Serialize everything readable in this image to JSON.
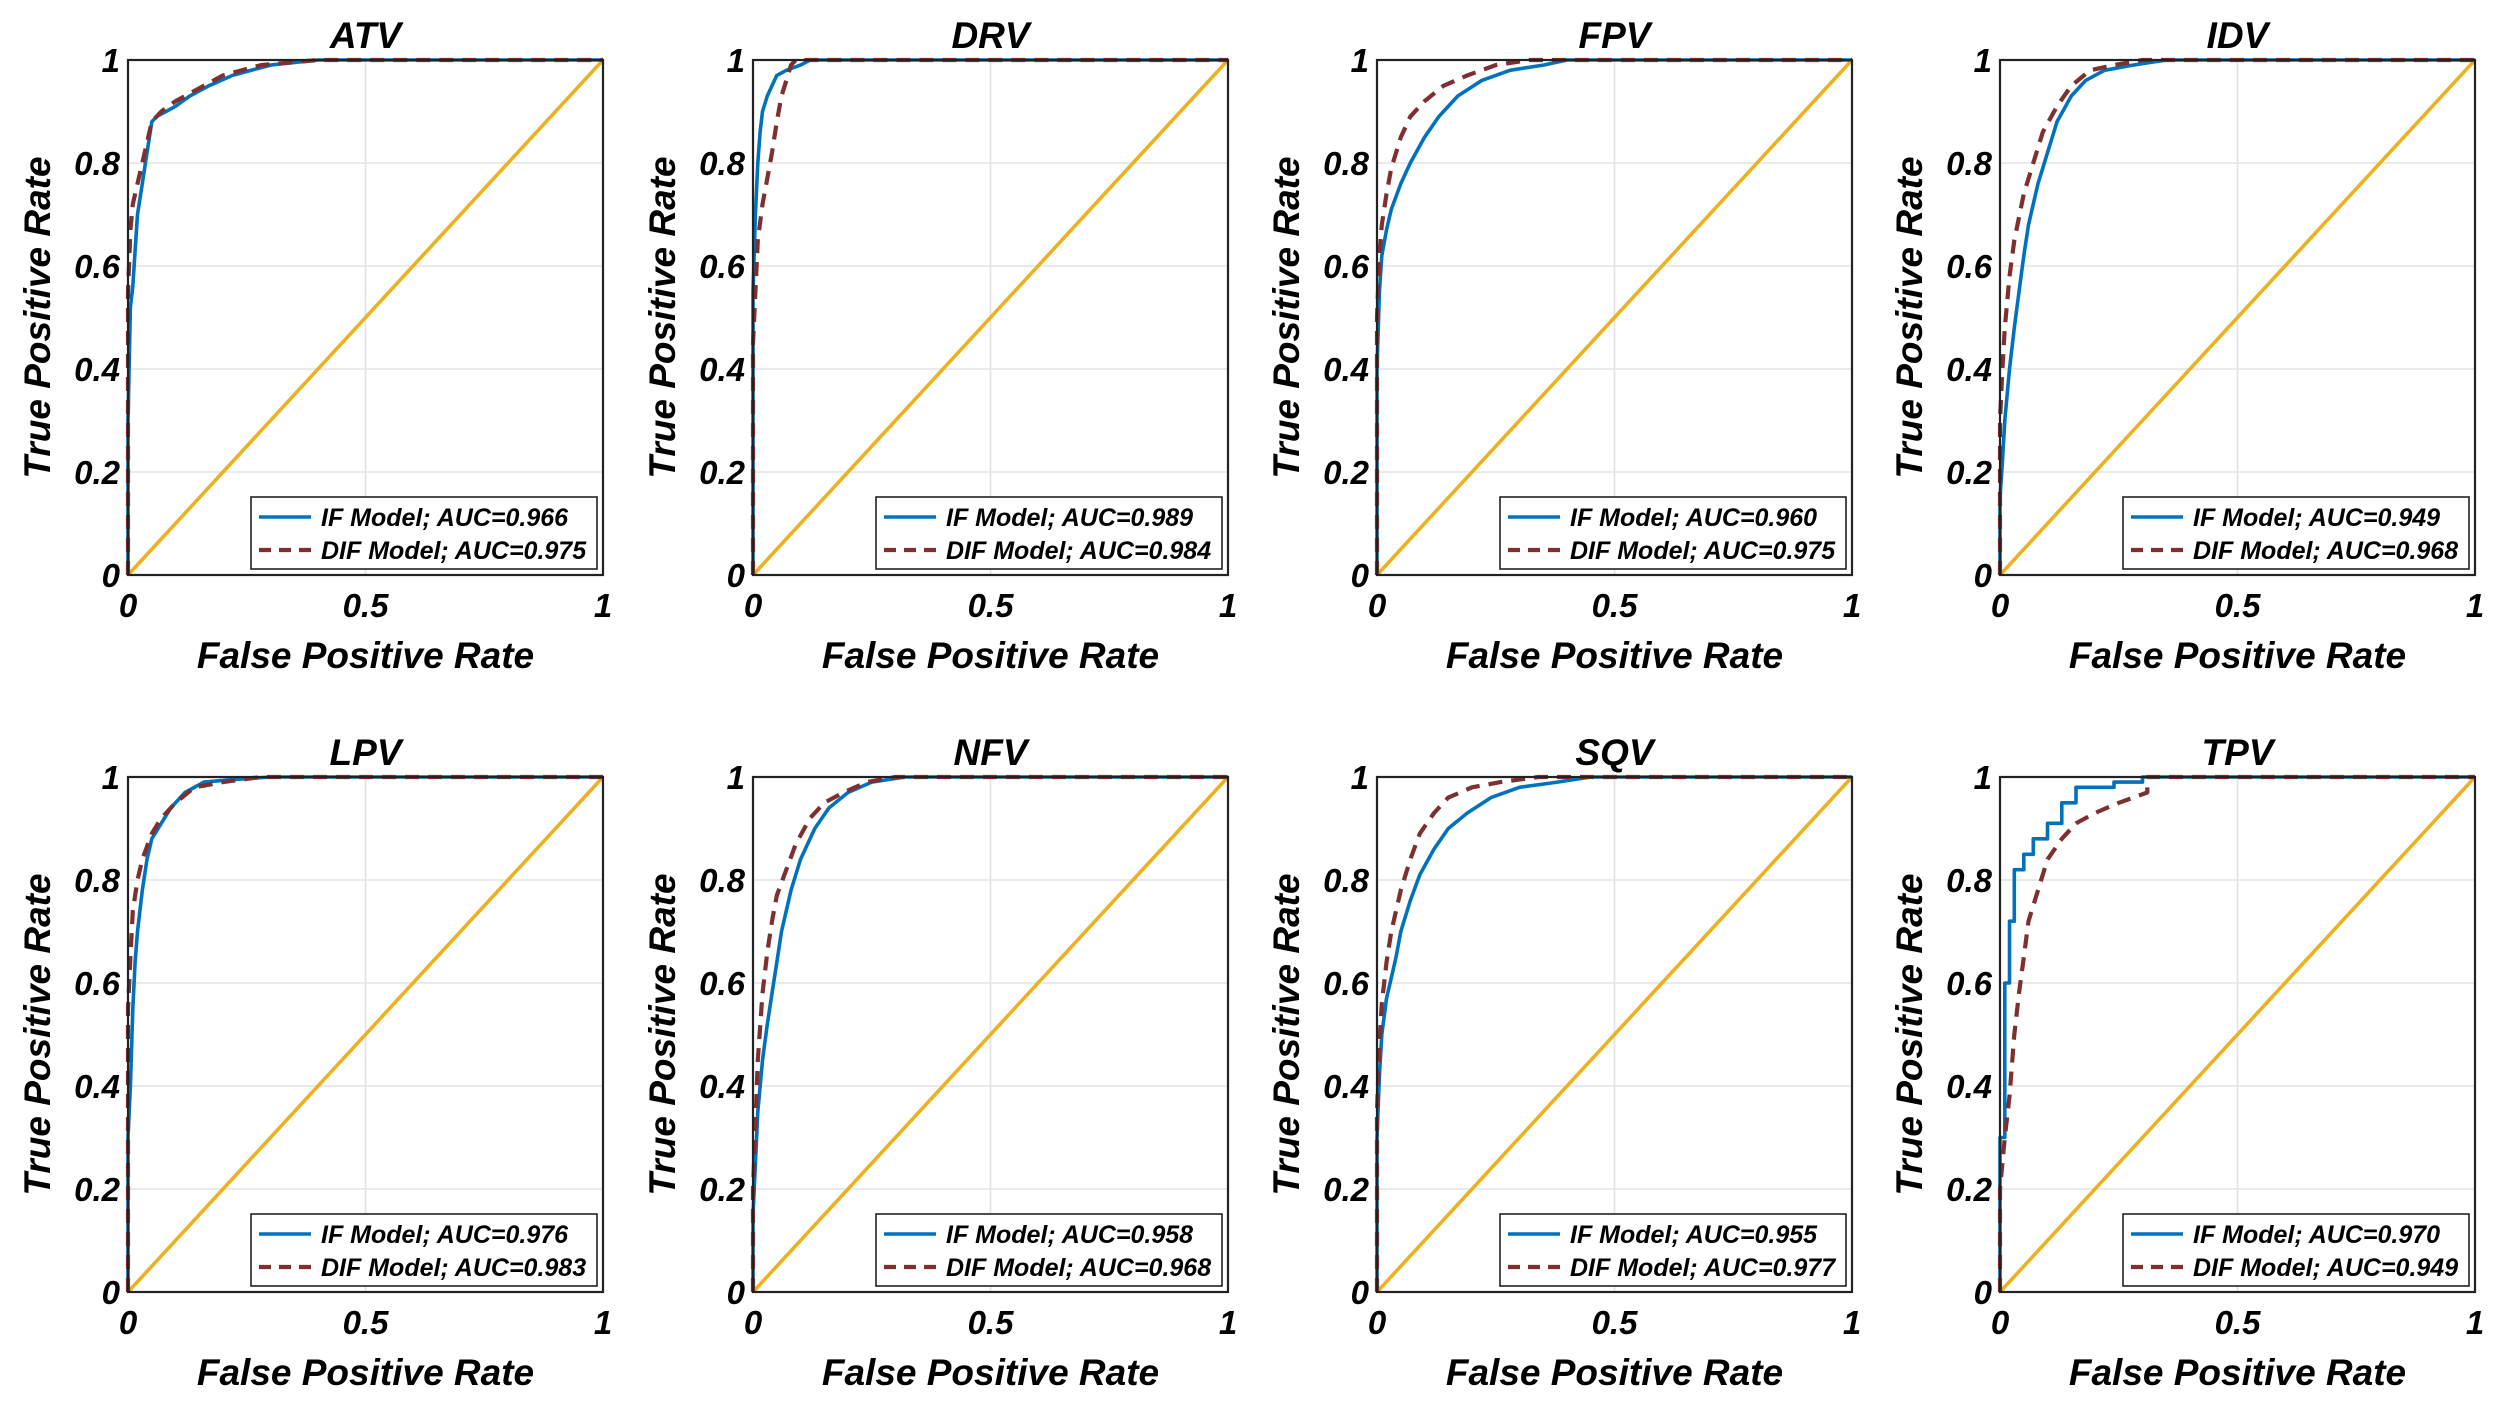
{
  "chart_data": [
    {
      "type": "line",
      "title": "ATV",
      "xlabel": "False Positive Rate",
      "ylabel": "True Positive Rate",
      "xlim": [
        0,
        1
      ],
      "ylim": [
        0,
        1
      ],
      "x_ticks": [
        "0",
        "0.5",
        "1"
      ],
      "y_ticks": [
        "0",
        "0.2",
        "0.4",
        "0.6",
        "0.8",
        "1"
      ],
      "grid": true,
      "legend_position": "bottom-right",
      "series": [
        {
          "name": "IF Model; AUC=0.966",
          "color": "#0072BD",
          "style": "solid",
          "x": [
            0,
            0,
            0.005,
            0.01,
            0.015,
            0.02,
            0.03,
            0.04,
            0.05,
            0.06,
            0.08,
            0.1,
            0.13,
            0.17,
            0.22,
            0.3,
            0.4,
            0.6,
            1
          ],
          "y": [
            0,
            0.3,
            0.52,
            0.56,
            0.63,
            0.7,
            0.76,
            0.82,
            0.88,
            0.89,
            0.9,
            0.91,
            0.93,
            0.95,
            0.97,
            0.99,
            1.0,
            1.0,
            1.0
          ]
        },
        {
          "name": "DIF Model; AUC=0.975",
          "color": "#7E2F2F",
          "style": "dashed",
          "x": [
            0,
            0,
            0.005,
            0.01,
            0.02,
            0.03,
            0.05,
            0.07,
            0.1,
            0.14,
            0.2,
            0.28,
            0.4,
            1
          ],
          "y": [
            0,
            0.55,
            0.67,
            0.72,
            0.76,
            0.8,
            0.88,
            0.9,
            0.92,
            0.94,
            0.97,
            0.99,
            1.0,
            1.0
          ]
        },
        {
          "name": "",
          "color": "#EDB120",
          "style": "solid",
          "x": [
            0,
            1
          ],
          "y": [
            0,
            1
          ]
        }
      ]
    },
    {
      "type": "line",
      "title": "DRV",
      "xlabel": "False Positive Rate",
      "ylabel": "True Positive Rate",
      "xlim": [
        0,
        1
      ],
      "ylim": [
        0,
        1
      ],
      "x_ticks": [
        "0",
        "0.5",
        "1"
      ],
      "y_ticks": [
        "0",
        "0.2",
        "0.4",
        "0.6",
        "0.8",
        "1"
      ],
      "grid": true,
      "legend_position": "bottom-right",
      "series": [
        {
          "name": "IF Model; AUC=0.989",
          "color": "#0072BD",
          "style": "solid",
          "x": [
            0,
            0,
            0.005,
            0.01,
            0.015,
            0.02,
            0.03,
            0.04,
            0.05,
            0.07,
            0.1,
            0.12,
            1
          ],
          "y": [
            0,
            0.55,
            0.7,
            0.8,
            0.86,
            0.9,
            0.93,
            0.95,
            0.97,
            0.98,
            0.99,
            1.0,
            1.0
          ]
        },
        {
          "name": "DIF Model; AUC=0.984",
          "color": "#7E2F2F",
          "style": "dashed",
          "x": [
            0,
            0,
            0.01,
            0.02,
            0.03,
            0.04,
            0.05,
            0.06,
            0.07,
            0.08,
            0.09,
            1
          ],
          "y": [
            0,
            0.45,
            0.65,
            0.72,
            0.77,
            0.82,
            0.88,
            0.93,
            0.96,
            0.99,
            1.0,
            1.0
          ]
        },
        {
          "name": "",
          "color": "#EDB120",
          "style": "solid",
          "x": [
            0,
            1
          ],
          "y": [
            0,
            1
          ]
        }
      ]
    },
    {
      "type": "line",
      "title": "FPV",
      "xlabel": "False Positive Rate",
      "ylabel": "True Positive Rate",
      "xlim": [
        0,
        1
      ],
      "ylim": [
        0,
        1
      ],
      "x_ticks": [
        "0",
        "0.5",
        "1"
      ],
      "y_ticks": [
        "0",
        "0.2",
        "0.4",
        "0.6",
        "0.8",
        "1"
      ],
      "grid": true,
      "legend_position": "bottom-right",
      "series": [
        {
          "name": "IF Model; AUC=0.960",
          "color": "#0072BD",
          "style": "solid",
          "x": [
            0,
            0,
            0.005,
            0.01,
            0.02,
            0.03,
            0.05,
            0.07,
            0.1,
            0.13,
            0.17,
            0.22,
            0.28,
            0.35,
            0.4,
            1
          ],
          "y": [
            0,
            0.4,
            0.55,
            0.62,
            0.67,
            0.71,
            0.76,
            0.8,
            0.85,
            0.89,
            0.93,
            0.96,
            0.98,
            0.99,
            1.0,
            1.0
          ]
        },
        {
          "name": "DIF Model; AUC=0.975",
          "color": "#7E2F2F",
          "style": "dashed",
          "x": [
            0,
            0,
            0.005,
            0.01,
            0.02,
            0.03,
            0.05,
            0.07,
            0.1,
            0.14,
            0.19,
            0.25,
            0.32,
            1
          ],
          "y": [
            0,
            0.5,
            0.62,
            0.68,
            0.74,
            0.79,
            0.85,
            0.89,
            0.92,
            0.95,
            0.97,
            0.99,
            1.0,
            1.0
          ]
        },
        {
          "name": "",
          "color": "#EDB120",
          "style": "solid",
          "x": [
            0,
            1
          ],
          "y": [
            0,
            1
          ]
        }
      ]
    },
    {
      "type": "line",
      "title": "IDV",
      "xlabel": "False Positive Rate",
      "ylabel": "True Positive Rate",
      "xlim": [
        0,
        1
      ],
      "ylim": [
        0,
        1
      ],
      "x_ticks": [
        "0",
        "0.5",
        "1"
      ],
      "y_ticks": [
        "0",
        "0.2",
        "0.4",
        "0.6",
        "0.8",
        "1"
      ],
      "grid": true,
      "legend_position": "bottom-right",
      "series": [
        {
          "name": "IF Model; AUC=0.949",
          "color": "#0072BD",
          "style": "solid",
          "x": [
            0,
            0,
            0.005,
            0.01,
            0.02,
            0.03,
            0.04,
            0.05,
            0.06,
            0.08,
            0.1,
            0.12,
            0.15,
            0.18,
            0.22,
            0.28,
            0.35,
            1
          ],
          "y": [
            0,
            0.15,
            0.22,
            0.3,
            0.4,
            0.48,
            0.55,
            0.62,
            0.68,
            0.76,
            0.82,
            0.88,
            0.93,
            0.96,
            0.98,
            0.99,
            1.0,
            1.0
          ]
        },
        {
          "name": "DIF Model; AUC=0.968",
          "color": "#7E2F2F",
          "style": "dashed",
          "x": [
            0,
            0,
            0.005,
            0.01,
            0.02,
            0.03,
            0.05,
            0.07,
            0.09,
            0.12,
            0.15,
            0.19,
            0.24,
            0.3,
            1
          ],
          "y": [
            0,
            0.3,
            0.4,
            0.48,
            0.58,
            0.65,
            0.74,
            0.8,
            0.86,
            0.91,
            0.95,
            0.98,
            0.99,
            1.0,
            1.0
          ]
        },
        {
          "name": "",
          "color": "#EDB120",
          "style": "solid",
          "x": [
            0,
            1
          ],
          "y": [
            0,
            1
          ]
        }
      ]
    },
    {
      "type": "line",
      "title": "LPV",
      "xlabel": "False Positive Rate",
      "ylabel": "True Positive Rate",
      "xlim": [
        0,
        1
      ],
      "ylim": [
        0,
        1
      ],
      "x_ticks": [
        "0",
        "0.5",
        "1"
      ],
      "y_ticks": [
        "0",
        "0.2",
        "0.4",
        "0.6",
        "0.8",
        "1"
      ],
      "grid": true,
      "legend_position": "bottom-right",
      "series": [
        {
          "name": "IF Model; AUC=0.976",
          "color": "#0072BD",
          "style": "solid",
          "x": [
            0,
            0,
            0.005,
            0.01,
            0.015,
            0.02,
            0.03,
            0.04,
            0.05,
            0.07,
            0.09,
            0.12,
            0.16,
            0.22,
            0.3,
            1
          ],
          "y": [
            0,
            0.3,
            0.4,
            0.55,
            0.64,
            0.7,
            0.78,
            0.84,
            0.88,
            0.91,
            0.94,
            0.97,
            0.99,
            0.995,
            1.0,
            1.0
          ]
        },
        {
          "name": "DIF Model; AUC=0.983",
          "color": "#7E2F2F",
          "style": "dashed",
          "x": [
            0,
            0,
            0.005,
            0.01,
            0.02,
            0.03,
            0.05,
            0.07,
            0.1,
            0.14,
            0.2,
            0.28,
            1
          ],
          "y": [
            0,
            0.55,
            0.65,
            0.74,
            0.8,
            0.84,
            0.89,
            0.92,
            0.95,
            0.98,
            0.99,
            1.0,
            1.0
          ]
        },
        {
          "name": "",
          "color": "#EDB120",
          "style": "solid",
          "x": [
            0,
            1
          ],
          "y": [
            0,
            1
          ]
        }
      ]
    },
    {
      "type": "line",
      "title": "NFV",
      "xlabel": "False Positive Rate",
      "ylabel": "True Positive Rate",
      "xlim": [
        0,
        1
      ],
      "ylim": [
        0,
        1
      ],
      "x_ticks": [
        "0",
        "0.5",
        "1"
      ],
      "y_ticks": [
        "0",
        "0.2",
        "0.4",
        "0.6",
        "0.8",
        "1"
      ],
      "grid": true,
      "legend_position": "bottom-right",
      "series": [
        {
          "name": "IF Model; AUC=0.958",
          "color": "#0072BD",
          "style": "solid",
          "x": [
            0,
            0,
            0.005,
            0.01,
            0.02,
            0.03,
            0.04,
            0.05,
            0.06,
            0.08,
            0.1,
            0.13,
            0.16,
            0.2,
            0.25,
            0.32,
            1
          ],
          "y": [
            0,
            0.15,
            0.25,
            0.35,
            0.45,
            0.52,
            0.58,
            0.64,
            0.7,
            0.78,
            0.84,
            0.9,
            0.94,
            0.97,
            0.99,
            1.0,
            1.0
          ]
        },
        {
          "name": "DIF Model; AUC=0.968",
          "color": "#7E2F2F",
          "style": "dashed",
          "x": [
            0,
            0,
            0.005,
            0.01,
            0.02,
            0.03,
            0.04,
            0.05,
            0.07,
            0.09,
            0.12,
            0.15,
            0.19,
            0.24,
            0.3,
            1
          ],
          "y": [
            0,
            0.2,
            0.32,
            0.45,
            0.58,
            0.66,
            0.72,
            0.77,
            0.82,
            0.87,
            0.92,
            0.95,
            0.97,
            0.99,
            1.0,
            1.0
          ]
        },
        {
          "name": "",
          "color": "#EDB120",
          "style": "solid",
          "x": [
            0,
            1
          ],
          "y": [
            0,
            1
          ]
        }
      ]
    },
    {
      "type": "line",
      "title": "SQV",
      "xlabel": "False Positive Rate",
      "ylabel": "True Positive Rate",
      "xlim": [
        0,
        1
      ],
      "ylim": [
        0,
        1
      ],
      "x_ticks": [
        "0",
        "0.5",
        "1"
      ],
      "y_ticks": [
        "0",
        "0.2",
        "0.4",
        "0.6",
        "0.8",
        "1"
      ],
      "grid": true,
      "legend_position": "bottom-right",
      "series": [
        {
          "name": "IF Model; AUC=0.955",
          "color": "#0072BD",
          "style": "solid",
          "x": [
            0,
            0,
            0.005,
            0.01,
            0.02,
            0.03,
            0.04,
            0.05,
            0.07,
            0.09,
            0.12,
            0.15,
            0.19,
            0.24,
            0.3,
            0.38,
            0.45,
            1
          ],
          "y": [
            0,
            0.3,
            0.42,
            0.5,
            0.57,
            0.61,
            0.65,
            0.7,
            0.76,
            0.81,
            0.86,
            0.9,
            0.93,
            0.96,
            0.98,
            0.99,
            1.0,
            1.0
          ]
        },
        {
          "name": "DIF Model; AUC=0.977",
          "color": "#7E2F2F",
          "style": "dashed",
          "x": [
            0,
            0,
            0.005,
            0.01,
            0.02,
            0.03,
            0.05,
            0.07,
            0.09,
            0.12,
            0.15,
            0.2,
            0.26,
            0.34,
            1
          ],
          "y": [
            0,
            0.35,
            0.48,
            0.56,
            0.64,
            0.7,
            0.78,
            0.84,
            0.89,
            0.93,
            0.96,
            0.98,
            0.99,
            1.0,
            1.0
          ]
        },
        {
          "name": "",
          "color": "#EDB120",
          "style": "solid",
          "x": [
            0,
            1
          ],
          "y": [
            0,
            1
          ]
        }
      ]
    },
    {
      "type": "line",
      "title": "TPV",
      "xlabel": "False Positive Rate",
      "ylabel": "True Positive Rate",
      "xlim": [
        0,
        1
      ],
      "ylim": [
        0,
        1
      ],
      "x_ticks": [
        "0",
        "0.5",
        "1"
      ],
      "y_ticks": [
        "0",
        "0.2",
        "0.4",
        "0.6",
        "0.8",
        "1"
      ],
      "grid": true,
      "legend_position": "bottom-right",
      "series": [
        {
          "name": "IF Model; AUC=0.970",
          "color": "#0072BD",
          "style": "solid",
          "x": [
            0,
            0,
            0.01,
            0.01,
            0.02,
            0.02,
            0.03,
            0.03,
            0.05,
            0.05,
            0.07,
            0.07,
            0.1,
            0.1,
            0.13,
            0.13,
            0.16,
            0.16,
            0.24,
            0.24,
            0.3,
            0.3,
            1
          ],
          "y": [
            0,
            0.3,
            0.3,
            0.6,
            0.6,
            0.72,
            0.72,
            0.82,
            0.82,
            0.85,
            0.85,
            0.88,
            0.88,
            0.91,
            0.91,
            0.95,
            0.95,
            0.98,
            0.98,
            0.99,
            0.99,
            1.0,
            1.0
          ]
        },
        {
          "name": "DIF Model; AUC=0.949",
          "color": "#7E2F2F",
          "style": "dashed",
          "x": [
            0,
            0,
            0.01,
            0.02,
            0.03,
            0.04,
            0.05,
            0.06,
            0.08,
            0.1,
            0.13,
            0.16,
            0.2,
            0.25,
            0.31,
            0.31,
            1
          ],
          "y": [
            0,
            0.2,
            0.3,
            0.38,
            0.5,
            0.58,
            0.65,
            0.72,
            0.78,
            0.84,
            0.88,
            0.91,
            0.93,
            0.95,
            0.97,
            1.0,
            1.0
          ]
        },
        {
          "name": "",
          "color": "#EDB120",
          "style": "solid",
          "x": [
            0,
            1
          ],
          "y": [
            0,
            1
          ]
        }
      ]
    }
  ]
}
